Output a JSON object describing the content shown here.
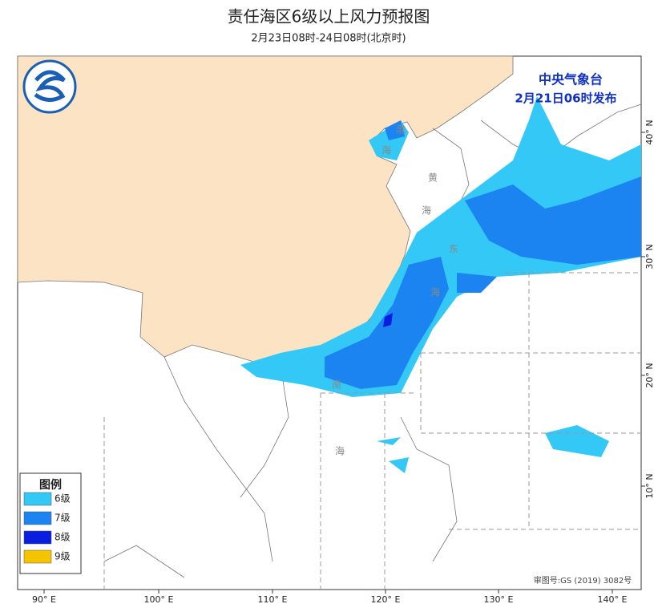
{
  "header": {
    "title": "责任海区6级以上风力预报图",
    "subtitle": "2月23日08时-24日08时(北京时)"
  },
  "issuer": {
    "name": "中央气象台",
    "time": "2月21日06时发布"
  },
  "legend": {
    "title": "图例",
    "items": [
      {
        "label": "6级",
        "color": "#33c8f5"
      },
      {
        "label": "7级",
        "color": "#1c84f0"
      },
      {
        "label": "8级",
        "color": "#0a1ee0"
      },
      {
        "label": "9级",
        "color": "#f5c400"
      }
    ]
  },
  "longitude_labels": [
    "90° E",
    "100° E",
    "110° E",
    "120° E",
    "130° E",
    "140° E"
  ],
  "latitude_labels": [
    "40° N",
    "30° N",
    "20° N",
    "10° N"
  ],
  "sea_labels": [
    "渤",
    "海",
    "黄",
    "海",
    "东",
    "海",
    "南",
    "海"
  ],
  "approval_number": "审图号:GS (2019) 3082号"
}
